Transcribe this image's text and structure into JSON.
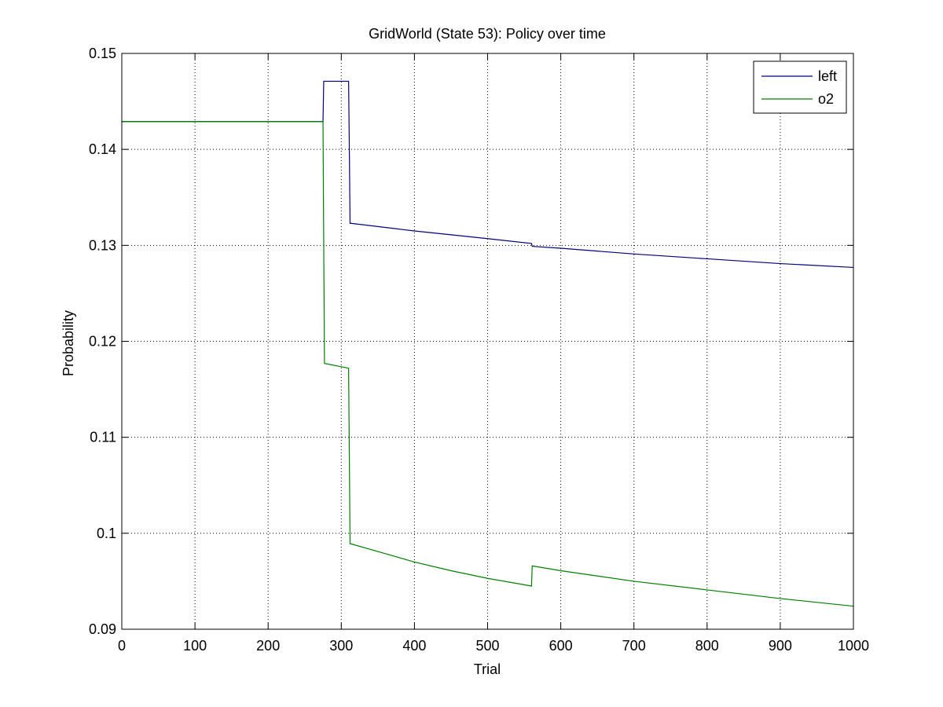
{
  "chart_data": {
    "type": "line",
    "title": "GridWorld (State 53): Policy over time",
    "xlabel": "Trial",
    "ylabel": "Probability",
    "xlim": [
      0,
      1000
    ],
    "ylim": [
      0.09,
      0.15
    ],
    "xticks": [
      0,
      100,
      200,
      300,
      400,
      500,
      600,
      700,
      800,
      900,
      1000
    ],
    "yticks": [
      0.09,
      0.1,
      0.11,
      0.12,
      0.13,
      0.14,
      0.15
    ],
    "ytick_labels": [
      "0.09",
      "0.1",
      "0.11",
      "0.12",
      "0.13",
      "0.14",
      "0.15"
    ],
    "grid": true,
    "legend_position": "top-right",
    "series": [
      {
        "name": "left",
        "color": "#00007f",
        "x": [
          0,
          275,
          276,
          277,
          310,
          311,
          312,
          313,
          400,
          500,
          560,
          561,
          600,
          700,
          800,
          900,
          1000
        ],
        "y": [
          0.1429,
          0.1429,
          0.1471,
          0.1471,
          0.1471,
          0.14,
          0.1323,
          0.1323,
          0.1315,
          0.1307,
          0.1302,
          0.1299,
          0.1297,
          0.1291,
          0.1286,
          0.1281,
          0.1277
        ]
      },
      {
        "name": "o2",
        "color": "#007f00",
        "x": [
          0,
          275,
          276,
          277,
          310,
          311,
          312,
          313,
          350,
          400,
          450,
          500,
          560,
          561,
          600,
          700,
          800,
          900,
          1000
        ],
        "y": [
          0.1429,
          0.1429,
          0.13,
          0.1177,
          0.1172,
          0.108,
          0.0989,
          0.0989,
          0.0981,
          0.097,
          0.0961,
          0.0953,
          0.0945,
          0.0966,
          0.0961,
          0.095,
          0.0941,
          0.0932,
          0.0924
        ]
      }
    ]
  }
}
